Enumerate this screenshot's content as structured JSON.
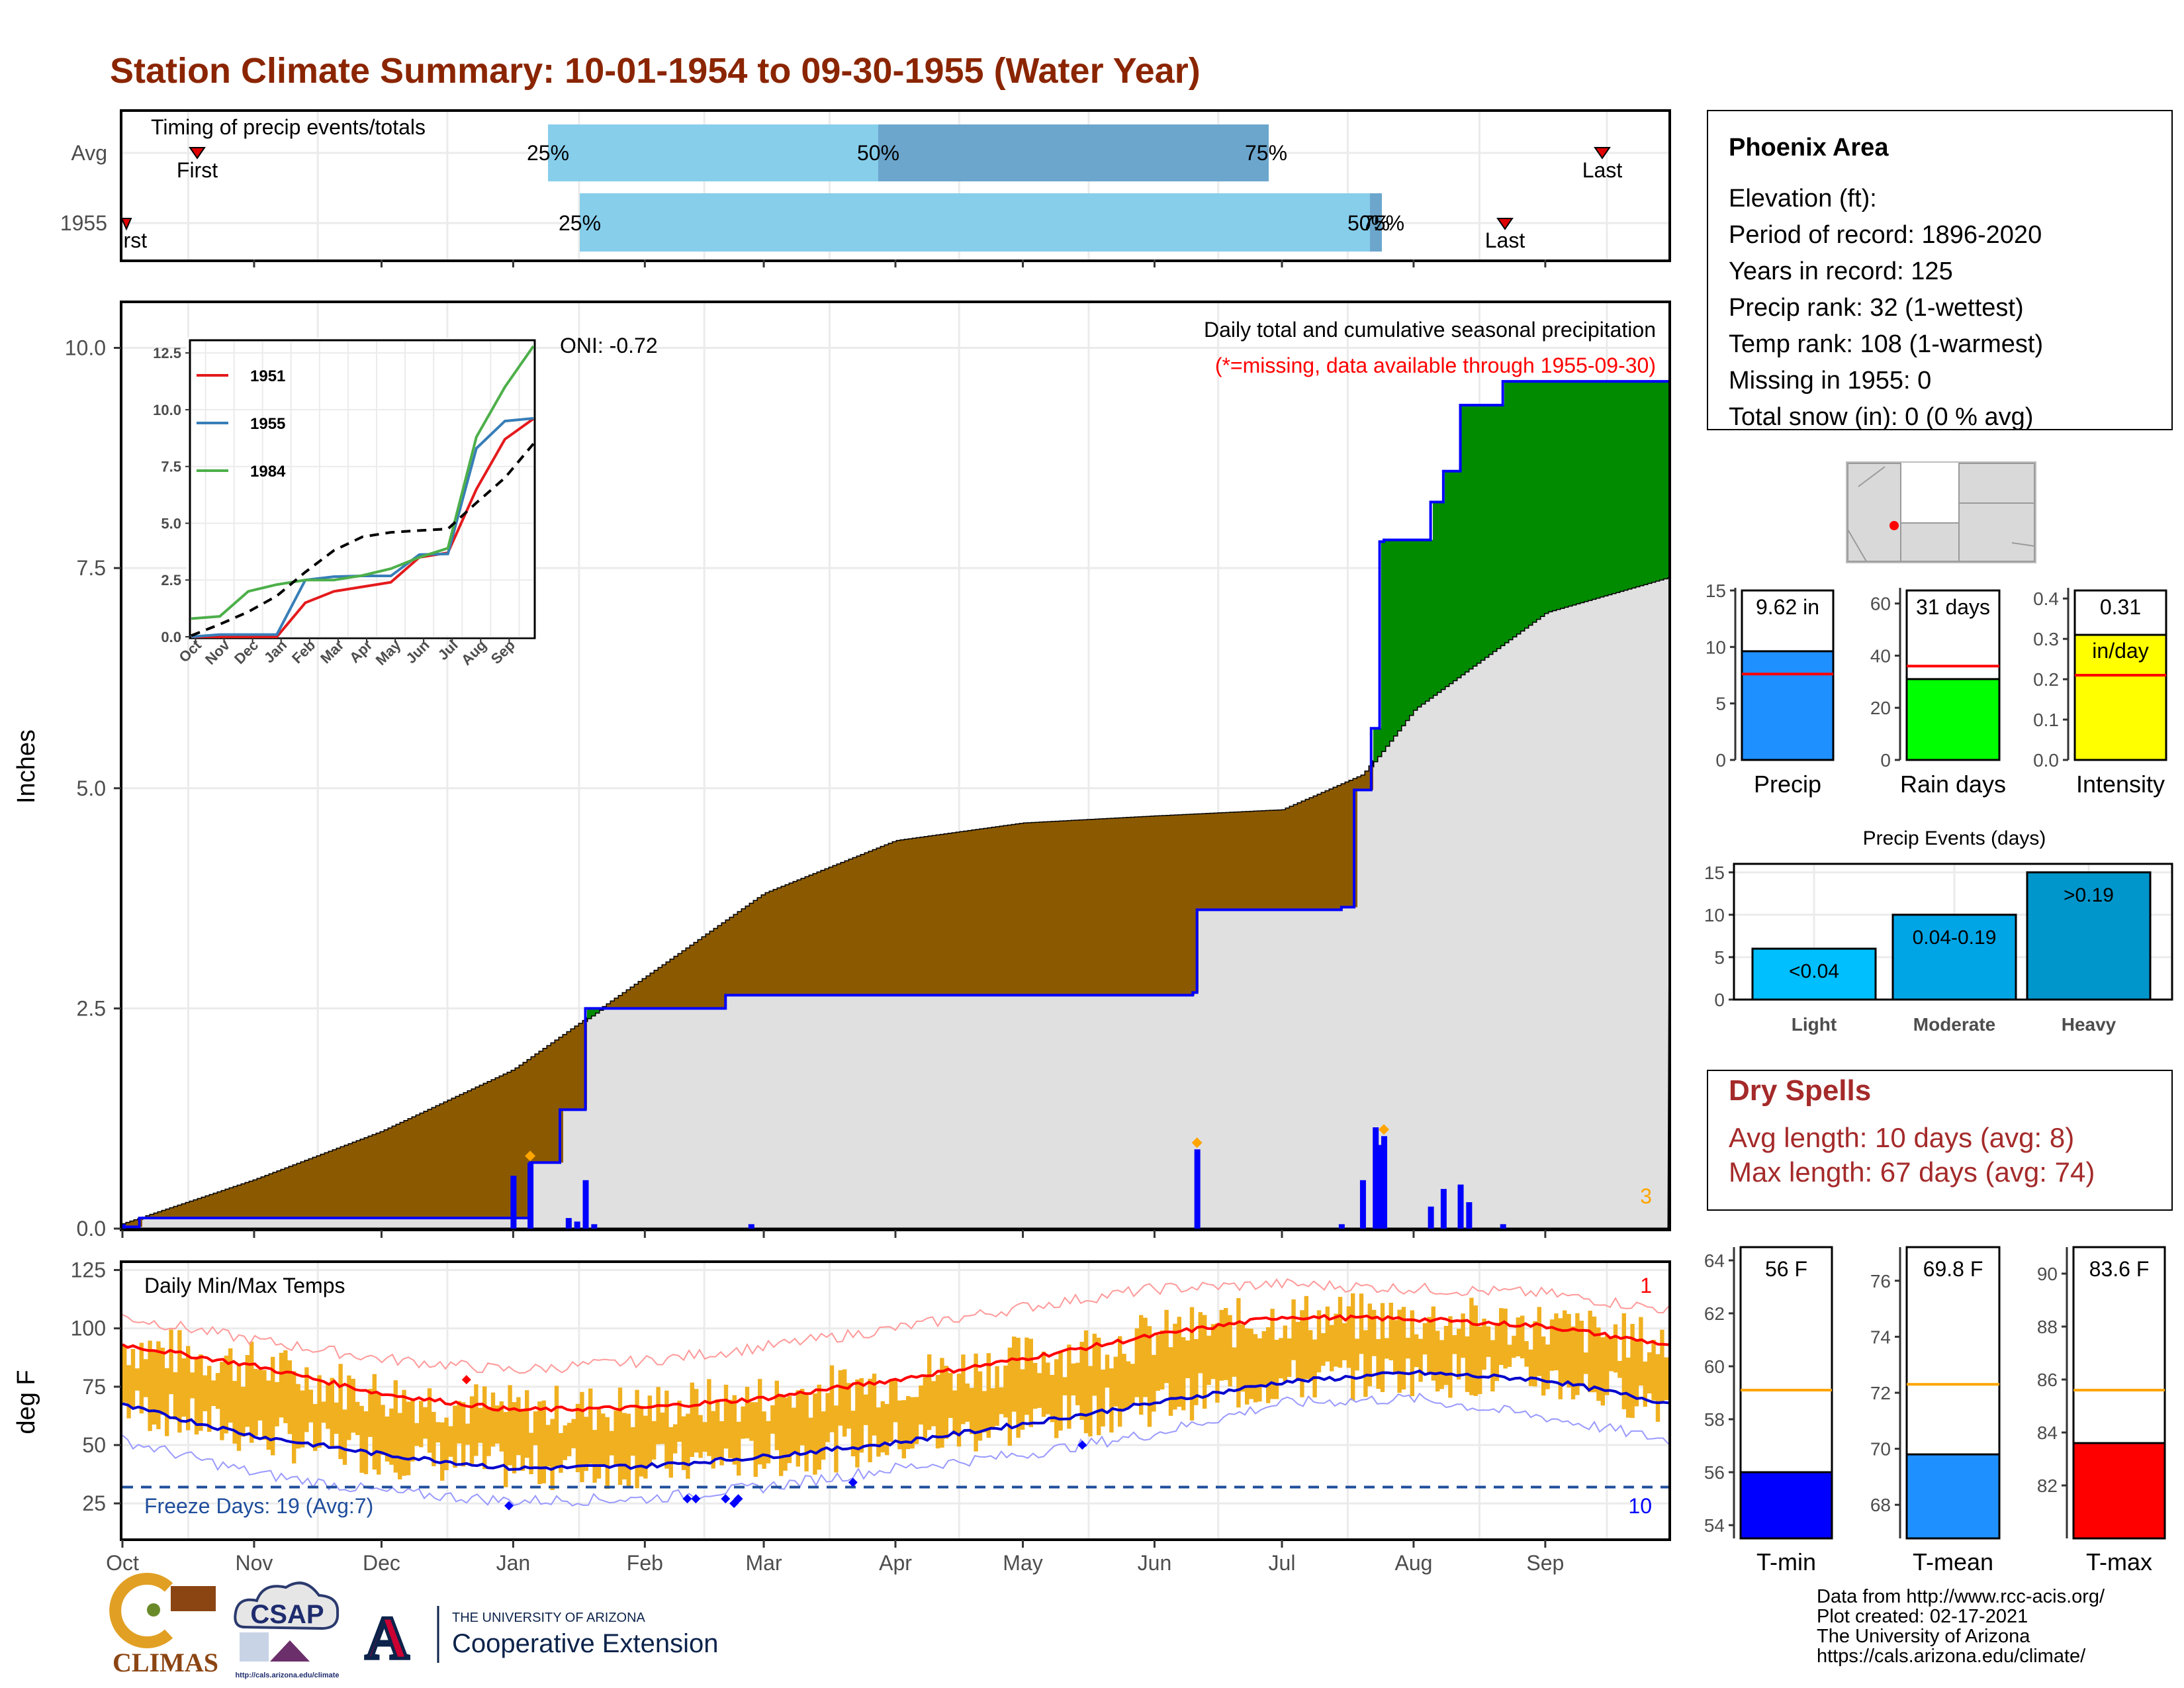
{
  "title": "Station Climate Summary: 10-01-1954 to 09-30-1955 (Water Year)",
  "colors": {
    "title": "#8B2500",
    "precip_deficit": "#8B5A00",
    "precip_surplus": "#008B00",
    "avg_fill": "#E0E0E0",
    "daily_bar": "#0000FF",
    "temp_range": "#F0B020",
    "tmax_line": "#FF0000",
    "tmin_line": "#0000CD",
    "timing_light": "#87CEEB",
    "timing_dark": "#6CA6CD",
    "spell_text": "#A52A2A"
  },
  "timing": {
    "title": "Timing of precip events/totals",
    "rows": [
      "Avg",
      "1955"
    ],
    "avg": {
      "first_label": "First",
      "last_label": "Last",
      "q25": "25%",
      "q50": "50%",
      "q75": "75%"
    },
    "year": {
      "first_label": "First",
      "last_label": "Last",
      "q25": "25%",
      "q50": "50%",
      "q75": "75%"
    }
  },
  "precip": {
    "ylabel": "Inches",
    "yticks": [
      "0.0",
      "2.5",
      "5.0",
      "7.5",
      "10.0"
    ],
    "caption": "Daily total and cumulative seasonal precipitation",
    "missing_note": "(*=missing, data available through 1955-09-30)",
    "oni": "ONI: -0.72",
    "corner_count": "3"
  },
  "inset": {
    "series": [
      "1951",
      "1955",
      "1984"
    ],
    "yticks": [
      "0.0",
      "2.5",
      "5.0",
      "7.5",
      "10.0",
      "12.5"
    ],
    "xticks": [
      "Oct",
      "Nov",
      "Dec",
      "Jan",
      "Feb",
      "Mar",
      "Apr",
      "May",
      "Jun",
      "Jul",
      "Aug",
      "Sep"
    ]
  },
  "temps": {
    "title": "Daily Min/Max Temps",
    "ylabel": "deg F",
    "yticks": [
      "25",
      "50",
      "75",
      "100",
      "125"
    ],
    "freeze": "Freeze Days: 19 (Avg:7)",
    "count_top": "1",
    "count_bottom": "10"
  },
  "months": [
    "Oct",
    "Nov",
    "Dec",
    "Jan",
    "Feb",
    "Mar",
    "Apr",
    "May",
    "Jun",
    "Jul",
    "Aug",
    "Sep"
  ],
  "info": {
    "name": "Phoenix Area",
    "lines": [
      "Elevation (ft):",
      "Period of record: 1896-2020",
      "Years in record: 125",
      "Precip rank: 32 (1-wettest)",
      "Temp rank: 108 (1-warmest)",
      "Missing in 1955: 0",
      "Total snow (in): 0 (0 % avg)"
    ]
  },
  "summary_bars": [
    {
      "label": "Precip",
      "value_text": "9.62 in",
      "color": "#1E90FF",
      "yticks": [
        "0",
        "5",
        "10",
        "15"
      ]
    },
    {
      "label": "Rain days",
      "value_text": "31 days",
      "color": "#00FF00",
      "yticks": [
        "0",
        "20",
        "40",
        "60"
      ]
    },
    {
      "label": "Intensity",
      "value_text": "0.31",
      "value_text2": "in/day",
      "color": "#FFFF00",
      "yticks": [
        "0.0",
        "0.1",
        "0.2",
        "0.3",
        "0.4"
      ]
    }
  ],
  "events": {
    "title": "Precip Events (days)",
    "categories": [
      "Light",
      "Moderate",
      "Heavy"
    ],
    "bar_labels": [
      "<0.04",
      "0.04-0.19",
      ">0.19"
    ],
    "yticks": [
      "0",
      "5",
      "10",
      "15"
    ]
  },
  "dry_spells": {
    "title": "Dry Spells",
    "avg": "Avg length: 10 days (avg: 8)",
    "max": "Max length: 67 days (avg: 74)"
  },
  "temp_bars": [
    {
      "label": "T-min",
      "value_text": "56 F",
      "color": "#0000FF",
      "yticks": [
        "54",
        "56",
        "58",
        "60",
        "62",
        "64"
      ]
    },
    {
      "label": "T-mean",
      "value_text": "69.8 F",
      "color": "#1E90FF",
      "yticks": [
        "68",
        "70",
        "72",
        "74",
        "76"
      ]
    },
    {
      "label": "T-max",
      "value_text": "83.6 F",
      "color": "#FF0000",
      "yticks": [
        "82",
        "84",
        "86",
        "88",
        "90"
      ]
    }
  ],
  "credits": [
    "Data from http://www.rcc-acis.org/",
    "Plot created: 02-17-2021",
    "The University of Arizona",
    "https://cals.arizona.edu/climate/"
  ],
  "logos": {
    "climas": "CLIMAS",
    "csap": "CSAP",
    "csap_url": "http://cals.arizona.edu/climate",
    "ua_small": "THE UNIVERSITY OF ARIZONA",
    "ua_big": "Cooperative Extension",
    "ua_letter": "A"
  },
  "chart_data": [
    {
      "type": "area",
      "name": "cumulative precipitation",
      "x_unit": "date",
      "ylabel": "Inches",
      "ylim": [
        0,
        10.5
      ],
      "series_cumulative_1955": {
        "x": [
          "1954-10-01",
          "1954-10-05",
          "1955-01-01",
          "1955-01-05",
          "1955-01-12",
          "1955-01-18",
          "1955-02-20",
          "1955-06-10",
          "1955-06-11",
          "1955-07-15",
          "1955-07-18",
          "1955-07-22",
          "1955-07-24",
          "1955-07-25",
          "1955-08-05",
          "1955-08-08",
          "1955-08-12",
          "1955-08-22",
          "1955-09-30"
        ],
        "y": [
          0.02,
          0.12,
          0.12,
          0.75,
          1.35,
          2.5,
          2.65,
          2.68,
          3.62,
          3.65,
          4.98,
          5.68,
          7.8,
          7.82,
          8.25,
          8.6,
          9.35,
          9.62,
          9.62
        ]
      },
      "series_average_cumulative": {
        "x": [
          "1954-10-01",
          "1954-11-01",
          "1954-12-01",
          "1955-01-01",
          "1955-02-01",
          "1955-03-01",
          "1955-04-01",
          "1955-05-01",
          "1955-06-01",
          "1955-07-01",
          "1955-07-20",
          "1955-08-01",
          "1955-09-01",
          "1955-09-30"
        ],
        "y": [
          0.05,
          0.55,
          1.1,
          1.8,
          2.85,
          3.8,
          4.4,
          4.6,
          4.68,
          4.75,
          5.15,
          5.9,
          7.0,
          7.4
        ]
      },
      "daily_precip": {
        "x": [
          "1954-10-01",
          "1955-01-01",
          "1955-01-05",
          "1955-01-14",
          "1955-01-16",
          "1955-01-18",
          "1955-01-20",
          "1955-02-26",
          "1955-06-11",
          "1955-07-15",
          "1955-07-20",
          "1955-07-23",
          "1955-07-24",
          "1955-07-25",
          "1955-08-05",
          "1955-08-08",
          "1955-08-12",
          "1955-08-14",
          "1955-08-22"
        ],
        "y": [
          0.05,
          0.6,
          0.75,
          0.12,
          0.08,
          0.55,
          0.05,
          0.05,
          0.9,
          0.05,
          0.55,
          1.15,
          0.95,
          1.05,
          0.25,
          0.45,
          0.5,
          0.3,
          0.05
        ]
      }
    },
    {
      "type": "line",
      "name": "inset cumulative comparison",
      "x": [
        "Oct",
        "Nov",
        "Dec",
        "Jan",
        "Feb",
        "Mar",
        "Apr",
        "May",
        "Jun",
        "Jul",
        "Aug",
        "Sep",
        "Sep-end"
      ],
      "ylim": [
        0,
        13
      ],
      "series": [
        {
          "name": "1951",
          "values": [
            0.0,
            0.0,
            0.0,
            0.0,
            1.5,
            2.0,
            2.2,
            2.4,
            3.5,
            3.7,
            6.5,
            8.7,
            9.6
          ]
        },
        {
          "name": "1955",
          "values": [
            0.0,
            0.1,
            0.1,
            0.1,
            2.5,
            2.65,
            2.68,
            2.68,
            3.62,
            3.65,
            8.3,
            9.5,
            9.62
          ]
        },
        {
          "name": "1984",
          "values": [
            0.8,
            0.9,
            2.0,
            2.3,
            2.5,
            2.5,
            2.7,
            3.0,
            3.5,
            3.9,
            8.8,
            11.0,
            12.8
          ]
        },
        {
          "values": [
            0.05,
            0.55,
            1.1,
            1.8,
            2.85,
            3.8,
            4.4,
            4.6,
            4.68,
            4.75,
            5.9,
            7.0,
            8.5
          ]
        }
      ]
    },
    {
      "type": "area",
      "name": "daily temperatures",
      "ylabel": "deg F",
      "ylim": [
        10,
        128
      ],
      "smoothed_max": {
        "x": [
          "Oct",
          "Nov",
          "Dec",
          "Jan",
          "Feb",
          "Mar",
          "Apr",
          "May",
          "Jun",
          "Jul",
          "Aug",
          "Sep",
          "Sep-end"
        ],
        "y": [
          93,
          84,
          72,
          65,
          66,
          70,
          78,
          87,
          97,
          105,
          104,
          101,
          93
        ]
      },
      "smoothed_min": {
        "x": [
          "Oct",
          "Nov",
          "Dec",
          "Jan",
          "Feb",
          "Mar",
          "Apr",
          "May",
          "Jun",
          "Jul",
          "Aug",
          "Sep",
          "Sep-end"
        ],
        "y": [
          67,
          54,
          46,
          40,
          41,
          45,
          51,
          59,
          68,
          77,
          81,
          78,
          68
        ]
      },
      "record_max": {
        "x": [
          "Oct",
          "Nov",
          "Dec",
          "Jan",
          "Feb",
          "Mar",
          "Apr",
          "May",
          "Jun",
          "Jul",
          "Aug",
          "Sep",
          "Sep-end"
        ],
        "y": [
          105,
          95,
          87,
          82,
          86,
          92,
          100,
          109,
          117,
          119,
          117,
          115,
          108
        ]
      },
      "record_min": {
        "x": [
          "Oct",
          "Nov",
          "Dec",
          "Jan",
          "Feb",
          "Mar",
          "Apr",
          "May",
          "Jun",
          "Jul",
          "Aug",
          "Sep",
          "Sep-end"
        ],
        "y": [
          52,
          38,
          30,
          26,
          27,
          32,
          40,
          46,
          55,
          68,
          70,
          62,
          52
        ]
      },
      "freeze_line": 32
    },
    {
      "type": "bar",
      "name": "Precip",
      "categories": [
        "Precip"
      ],
      "values": [
        9.62
      ],
      "avg": 7.6,
      "ylim": [
        0,
        15
      ]
    },
    {
      "type": "bar",
      "name": "Rain days",
      "categories": [
        "Rain days"
      ],
      "values": [
        31
      ],
      "avg": 36,
      "ylim": [
        0,
        65
      ]
    },
    {
      "type": "bar",
      "name": "Intensity",
      "categories": [
        "Intensity"
      ],
      "values": [
        0.31
      ],
      "avg": 0.21,
      "ylim": [
        0,
        0.42
      ]
    },
    {
      "type": "bar",
      "name": "Precip Events (days)",
      "categories": [
        "Light",
        "Moderate",
        "Heavy"
      ],
      "values": [
        6,
        10,
        15
      ],
      "ylim": [
        0,
        16
      ]
    },
    {
      "type": "bar",
      "name": "T-min",
      "categories": [
        "T-min"
      ],
      "values": [
        56.0
      ],
      "avg": 59.1,
      "ylim": [
        53.5,
        64.5
      ]
    },
    {
      "type": "bar",
      "name": "T-mean",
      "categories": [
        "T-mean"
      ],
      "values": [
        69.8
      ],
      "avg": 72.3,
      "ylim": [
        66.8,
        77.2
      ]
    },
    {
      "type": "bar",
      "name": "T-max",
      "categories": [
        "T-max"
      ],
      "values": [
        83.6
      ],
      "avg": 85.6,
      "ylim": [
        80.0,
        91.0
      ]
    }
  ]
}
